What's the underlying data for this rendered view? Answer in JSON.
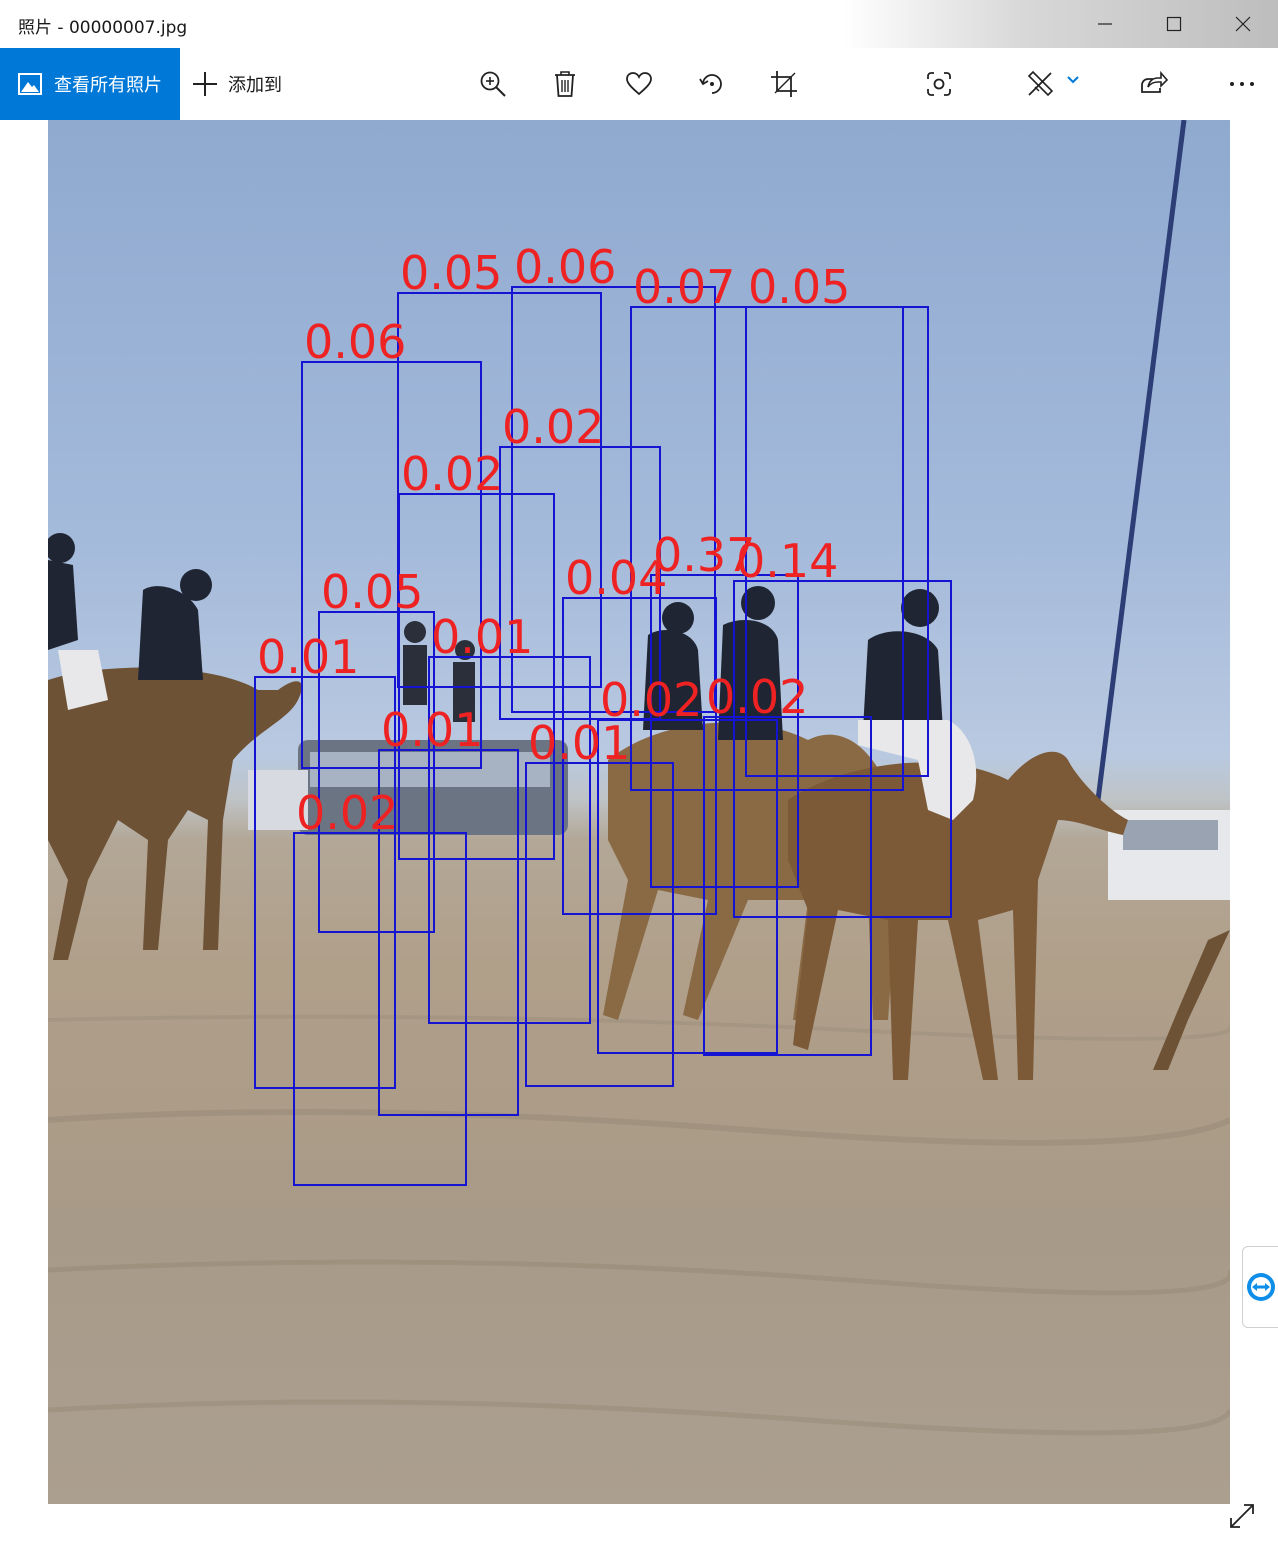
{
  "window": {
    "title": "照片 - 00000007.jpg"
  },
  "toolbar": {
    "view_all_label": "查看所有照片",
    "add_to_label": "添加到",
    "tools": [
      "zoom-in-icon",
      "delete-icon",
      "favorite-icon",
      "rotate-icon",
      "crop-icon",
      "visual-search-icon",
      "edit-icon",
      "share-icon",
      "more-icon"
    ]
  },
  "detections": [
    {
      "score": "0.05"
    },
    {
      "score": "0.06"
    },
    {
      "score": "0.07"
    },
    {
      "score": "0.05"
    },
    {
      "score": "0.06"
    },
    {
      "score": "0.02"
    },
    {
      "score": "0.02"
    },
    {
      "score": "0.37"
    },
    {
      "score": "0.14"
    },
    {
      "score": "0.04"
    },
    {
      "score": "0.05"
    },
    {
      "score": "0.01"
    },
    {
      "score": "0.01"
    },
    {
      "score": "0.02"
    },
    {
      "score": "0.02"
    },
    {
      "score": "0.01"
    },
    {
      "score": "0.01"
    },
    {
      "score": "0.02"
    }
  ],
  "colors": {
    "accent": "#0078d7",
    "box": "#1414d2",
    "label": "#ee2222"
  }
}
